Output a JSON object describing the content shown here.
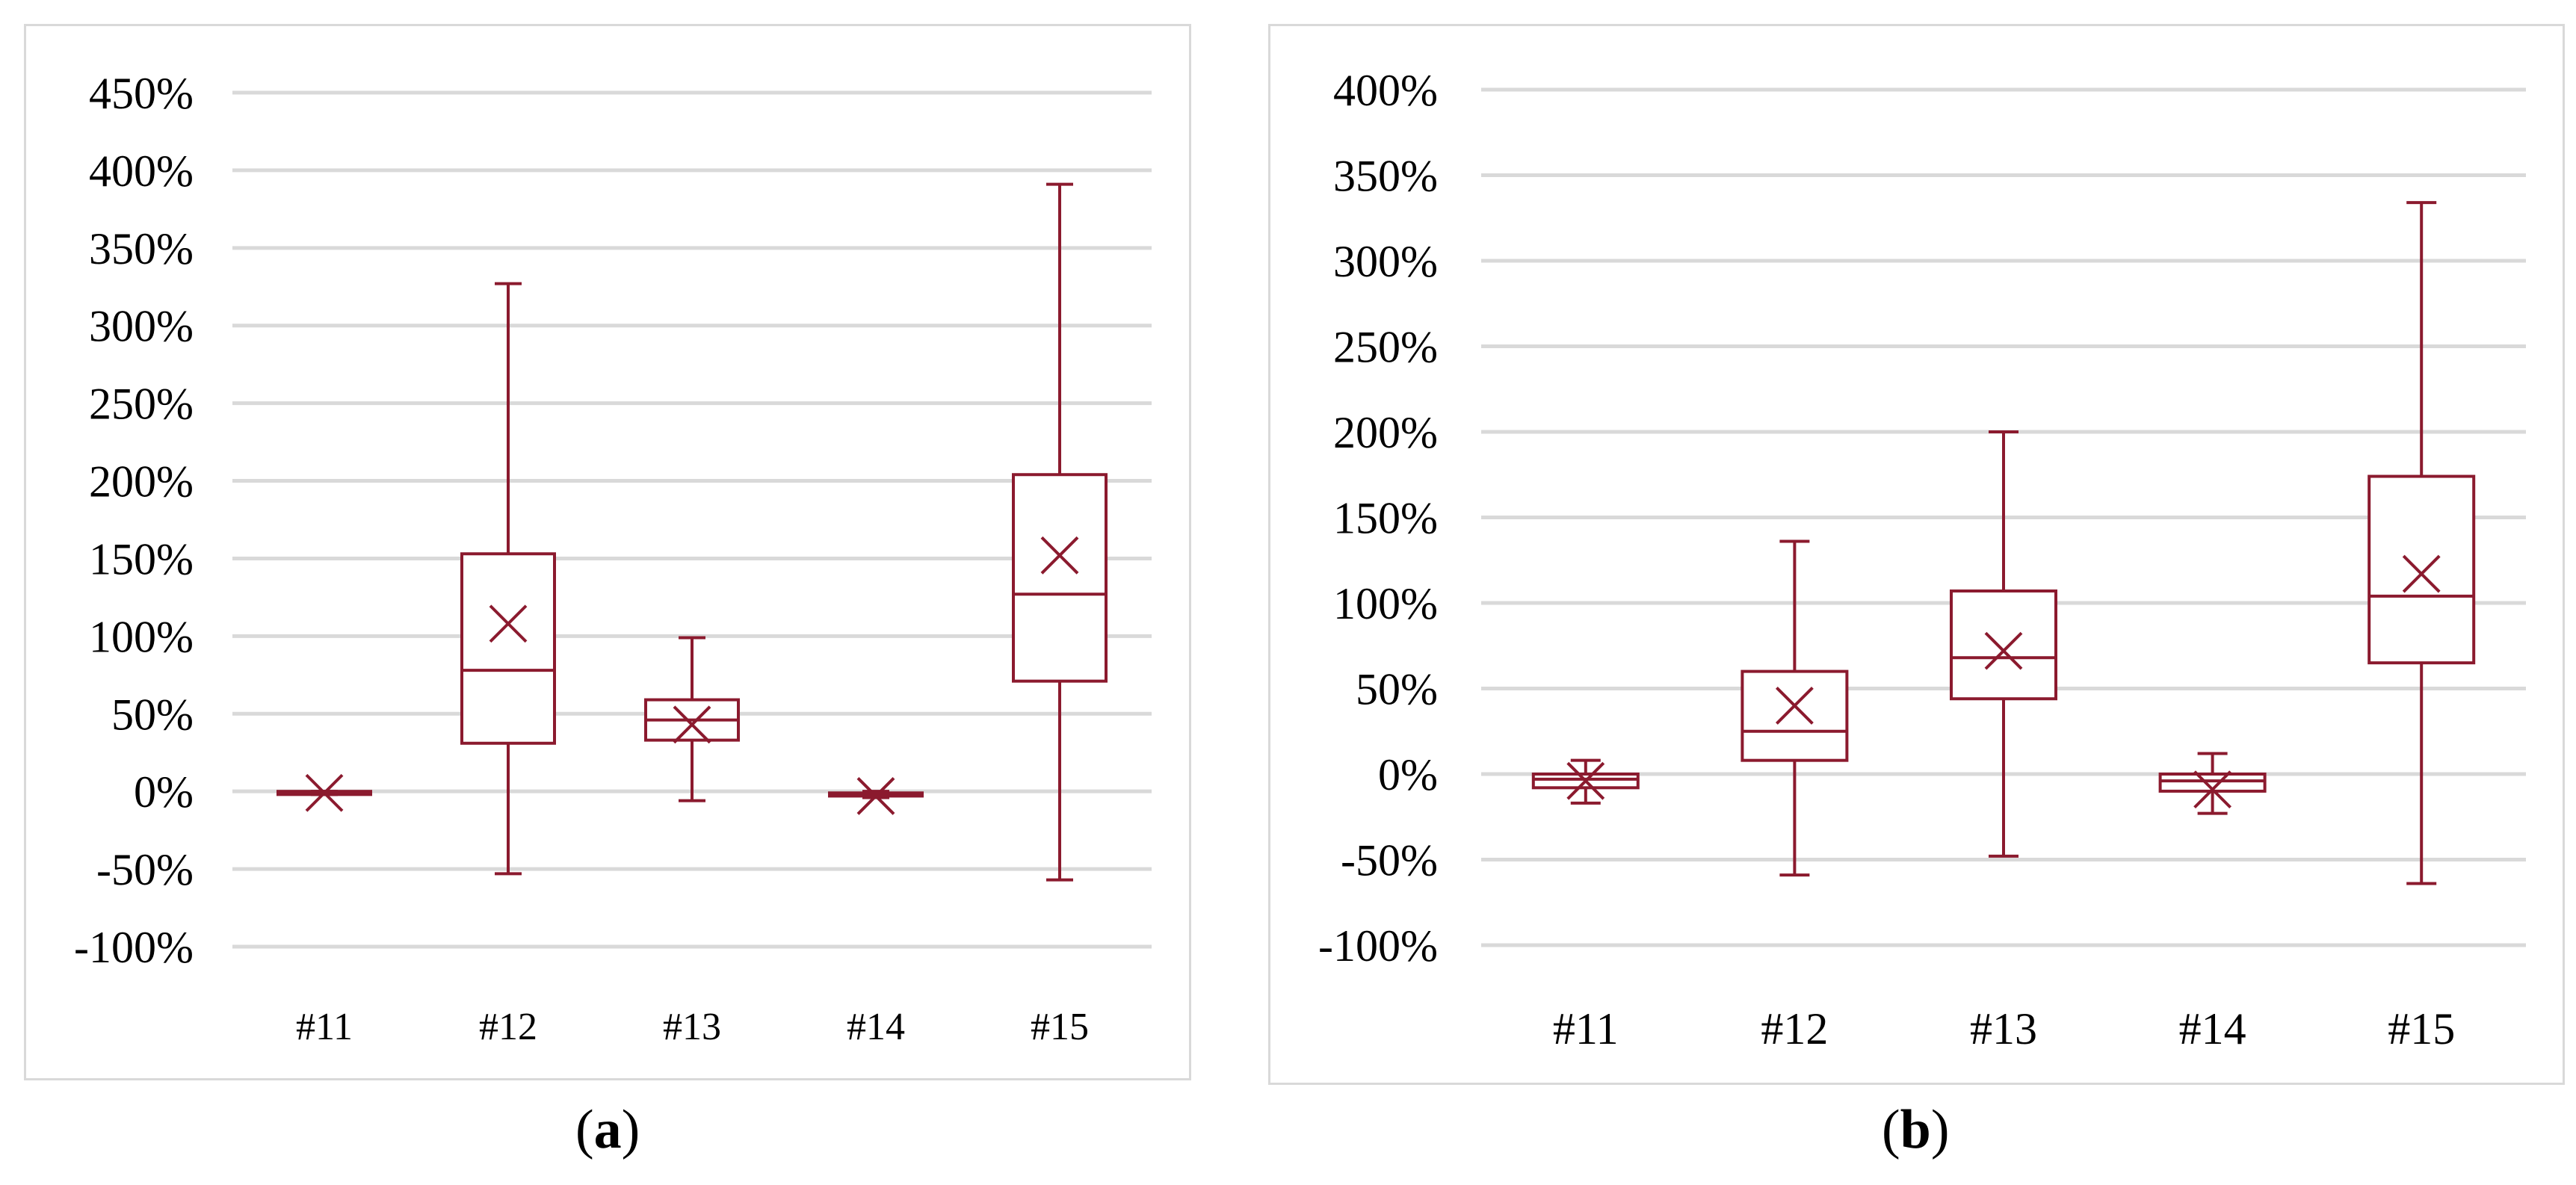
{
  "chart_data": [
    {
      "type": "box",
      "panel_label": "a",
      "title": "",
      "xlabel": "",
      "ylabel": "",
      "categories": [
        "#11",
        "#12",
        "#13",
        "#14",
        "#15"
      ],
      "y_ticks": [
        "-100%",
        "-50%",
        "0%",
        "50%",
        "100%",
        "150%",
        "200%",
        "250%",
        "300%",
        "350%",
        "400%",
        "450%"
      ],
      "ylim": [
        -100,
        450
      ],
      "grid": true,
      "color": "#8b1a2e",
      "boxes": [
        {
          "category": "#11",
          "min": -2,
          "q1": -2,
          "median": -1,
          "q3": 0,
          "max": 0,
          "mean": -1
        },
        {
          "category": "#12",
          "min": -53,
          "q1": 31,
          "median": 78,
          "q3": 153,
          "max": 327,
          "mean": 108
        },
        {
          "category": "#13",
          "min": -6,
          "q1": 33,
          "median": 46,
          "q3": 59,
          "max": 99,
          "mean": 43
        },
        {
          "category": "#14",
          "min": -4,
          "q1": -3,
          "median": -2,
          "q3": -1,
          "max": 0,
          "mean": -3
        },
        {
          "category": "#15",
          "min": -57,
          "q1": 71,
          "median": 127,
          "q3": 204,
          "max": 391,
          "mean": 152
        }
      ]
    },
    {
      "type": "box",
      "panel_label": "b",
      "title": "",
      "xlabel": "",
      "ylabel": "",
      "categories": [
        "#11",
        "#12",
        "#13",
        "#14",
        "#15"
      ],
      "y_ticks": [
        "-100%",
        "-50%",
        "0%",
        "50%",
        "100%",
        "150%",
        "200%",
        "250%",
        "300%",
        "350%",
        "400%"
      ],
      "ylim": [
        -100,
        400
      ],
      "grid": true,
      "color": "#8b1a2e",
      "boxes": [
        {
          "category": "#11",
          "min": -17,
          "q1": -8,
          "median": -3,
          "q3": 0,
          "max": 8,
          "mean": -4
        },
        {
          "category": "#12",
          "min": -59,
          "q1": 8,
          "median": 25,
          "q3": 60,
          "max": 136,
          "mean": 40
        },
        {
          "category": "#13",
          "min": -48,
          "q1": 44,
          "median": 68,
          "q3": 107,
          "max": 200,
          "mean": 72
        },
        {
          "category": "#14",
          "min": -23,
          "q1": -10,
          "median": -4,
          "q3": 0,
          "max": 12,
          "mean": -9
        },
        {
          "category": "#15",
          "min": -64,
          "q1": 65,
          "median": 104,
          "q3": 174,
          "max": 334,
          "mean": 117
        }
      ]
    }
  ],
  "captions": {
    "a": {
      "open": "(",
      "letter": "a",
      "close": ")"
    },
    "b": {
      "open": "(",
      "letter": "b",
      "close": ")"
    }
  }
}
